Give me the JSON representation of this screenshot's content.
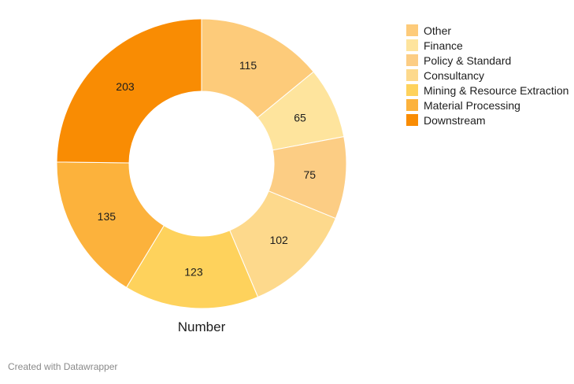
{
  "chart_data": {
    "type": "pie",
    "donut": true,
    "caption": "Number",
    "legend_position": "top-right",
    "slices": [
      {
        "name": "Other",
        "value": 115,
        "color": "#FDCB7A"
      },
      {
        "name": "Finance",
        "value": 65,
        "color": "#FEE49D"
      },
      {
        "name": "Policy & Standard",
        "value": 75,
        "color": "#FCCD84"
      },
      {
        "name": "Consultancy",
        "value": 102,
        "color": "#FDD98C"
      },
      {
        "name": "Mining & Resource Extraction",
        "value": 123,
        "color": "#FED25C"
      },
      {
        "name": "Material Processing",
        "value": 135,
        "color": "#FCB23C"
      },
      {
        "name": "Downstream",
        "value": 203,
        "color": "#F98C03"
      }
    ]
  },
  "footer": {
    "credit": "Created with Datawrapper"
  }
}
